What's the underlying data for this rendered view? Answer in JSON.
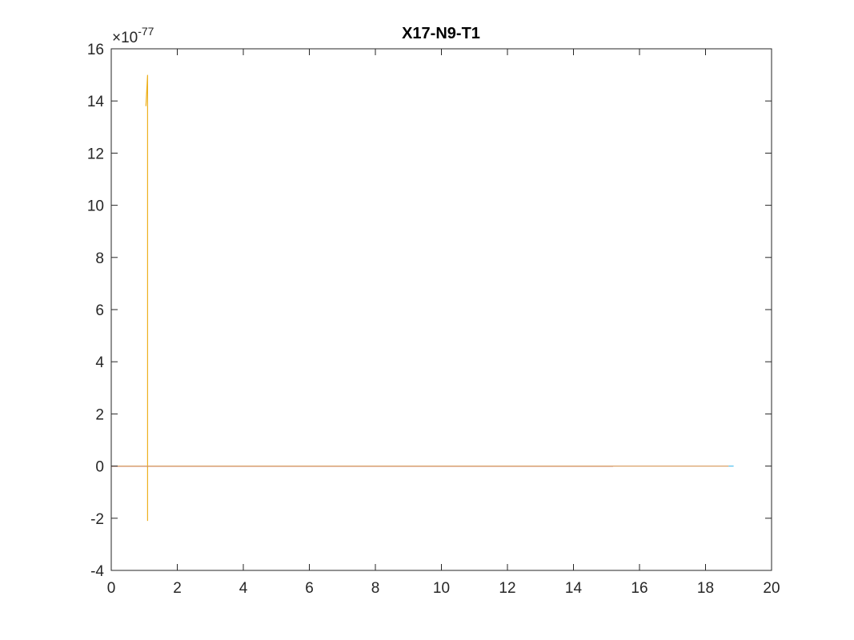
{
  "chart_data": {
    "type": "line",
    "title": "X17-N9-T1",
    "xlabel": "",
    "ylabel": "",
    "xlim": [
      0,
      20
    ],
    "ylim": [
      -4,
      16
    ],
    "x_ticks": [
      0,
      2,
      4,
      6,
      8,
      10,
      12,
      14,
      16,
      18,
      20
    ],
    "y_ticks": [
      -4,
      -2,
      0,
      2,
      4,
      6,
      8,
      10,
      12,
      14,
      16
    ],
    "x_tick_labels": [
      "0",
      "2",
      "4",
      "6",
      "8",
      "10",
      "12",
      "14",
      "16",
      "18",
      "20"
    ],
    "y_tick_labels": [
      "-4",
      "-2",
      "0",
      "2",
      "4",
      "6",
      "8",
      "10",
      "12",
      "14",
      "16"
    ],
    "y_exponent": {
      "base": "×10",
      "power": "-77"
    },
    "grid": false,
    "box": true,
    "series": [
      {
        "color": "#EDB120",
        "x": [
          1.05,
          1.1,
          1.1,
          1.1,
          1.1,
          1.1,
          1.1,
          1.1
        ],
        "y": [
          13.8,
          15.0,
          13.1,
          11.0,
          8.0,
          1.0,
          0.0,
          -2.1
        ]
      },
      {
        "color": "#A2142F",
        "x": [
          0.0,
          7.5,
          15.2
        ],
        "y": [
          0.0,
          0.0,
          0.0
        ]
      },
      {
        "color": "#D9A066",
        "x": [
          0.0,
          15.2,
          18.7
        ],
        "y": [
          0.0,
          0.0,
          0.0
        ]
      },
      {
        "color": "#4DBEEE",
        "x": [
          18.7,
          18.85
        ],
        "y": [
          0.0,
          0.0
        ]
      }
    ]
  }
}
